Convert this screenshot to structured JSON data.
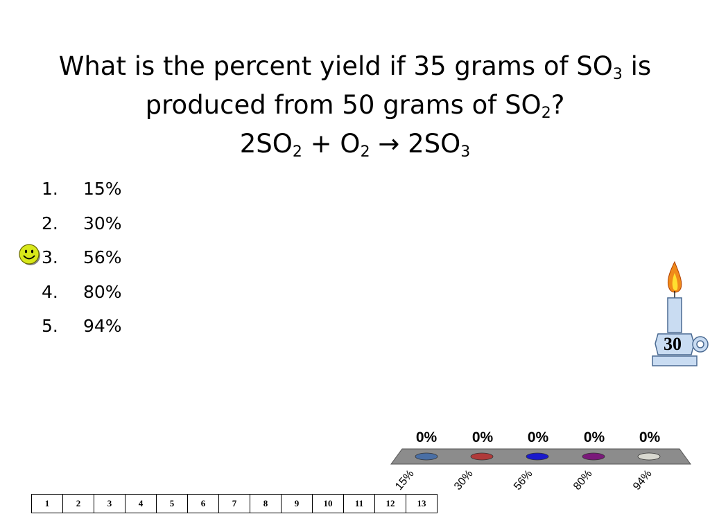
{
  "question": {
    "line1_a": "What is the percent yield if 35 grams of SO",
    "line1_sub": "3",
    "line1_b": " is",
    "line2_a": "produced from 50 grams of SO",
    "line2_sub": "2",
    "line2_b": "?",
    "eq_a": "2SO",
    "eq_sub1": "2",
    "eq_b": " + O",
    "eq_sub2": "2",
    "eq_c": " → 2SO",
    "eq_sub3": "3"
  },
  "answers": [
    {
      "num": "1.",
      "text": "15%"
    },
    {
      "num": "2.",
      "text": "30%"
    },
    {
      "num": "3.",
      "text": "56%"
    },
    {
      "num": "4.",
      "text": "80%"
    },
    {
      "num": "5.",
      "text": "94%"
    }
  ],
  "timer": {
    "value": "30"
  },
  "icons": {
    "smiley": "smiley-icon",
    "candle": "candle-timer-icon"
  },
  "chart_data": {
    "type": "bar",
    "categories": [
      "15%",
      "30%",
      "56%",
      "80%",
      "94%"
    ],
    "values": [
      0,
      0,
      0,
      0,
      0
    ],
    "value_labels": [
      "0%",
      "0%",
      "0%",
      "0%",
      "0%"
    ],
    "colors": [
      "#4a6fa5",
      "#b03a3a",
      "#1a1acc",
      "#7a1a7a",
      "#d8d8d0"
    ],
    "ylim": [
      0,
      100
    ]
  },
  "participants": [
    "1",
    "2",
    "3",
    "4",
    "5",
    "6",
    "7",
    "8",
    "9",
    "10",
    "11",
    "12",
    "13"
  ]
}
